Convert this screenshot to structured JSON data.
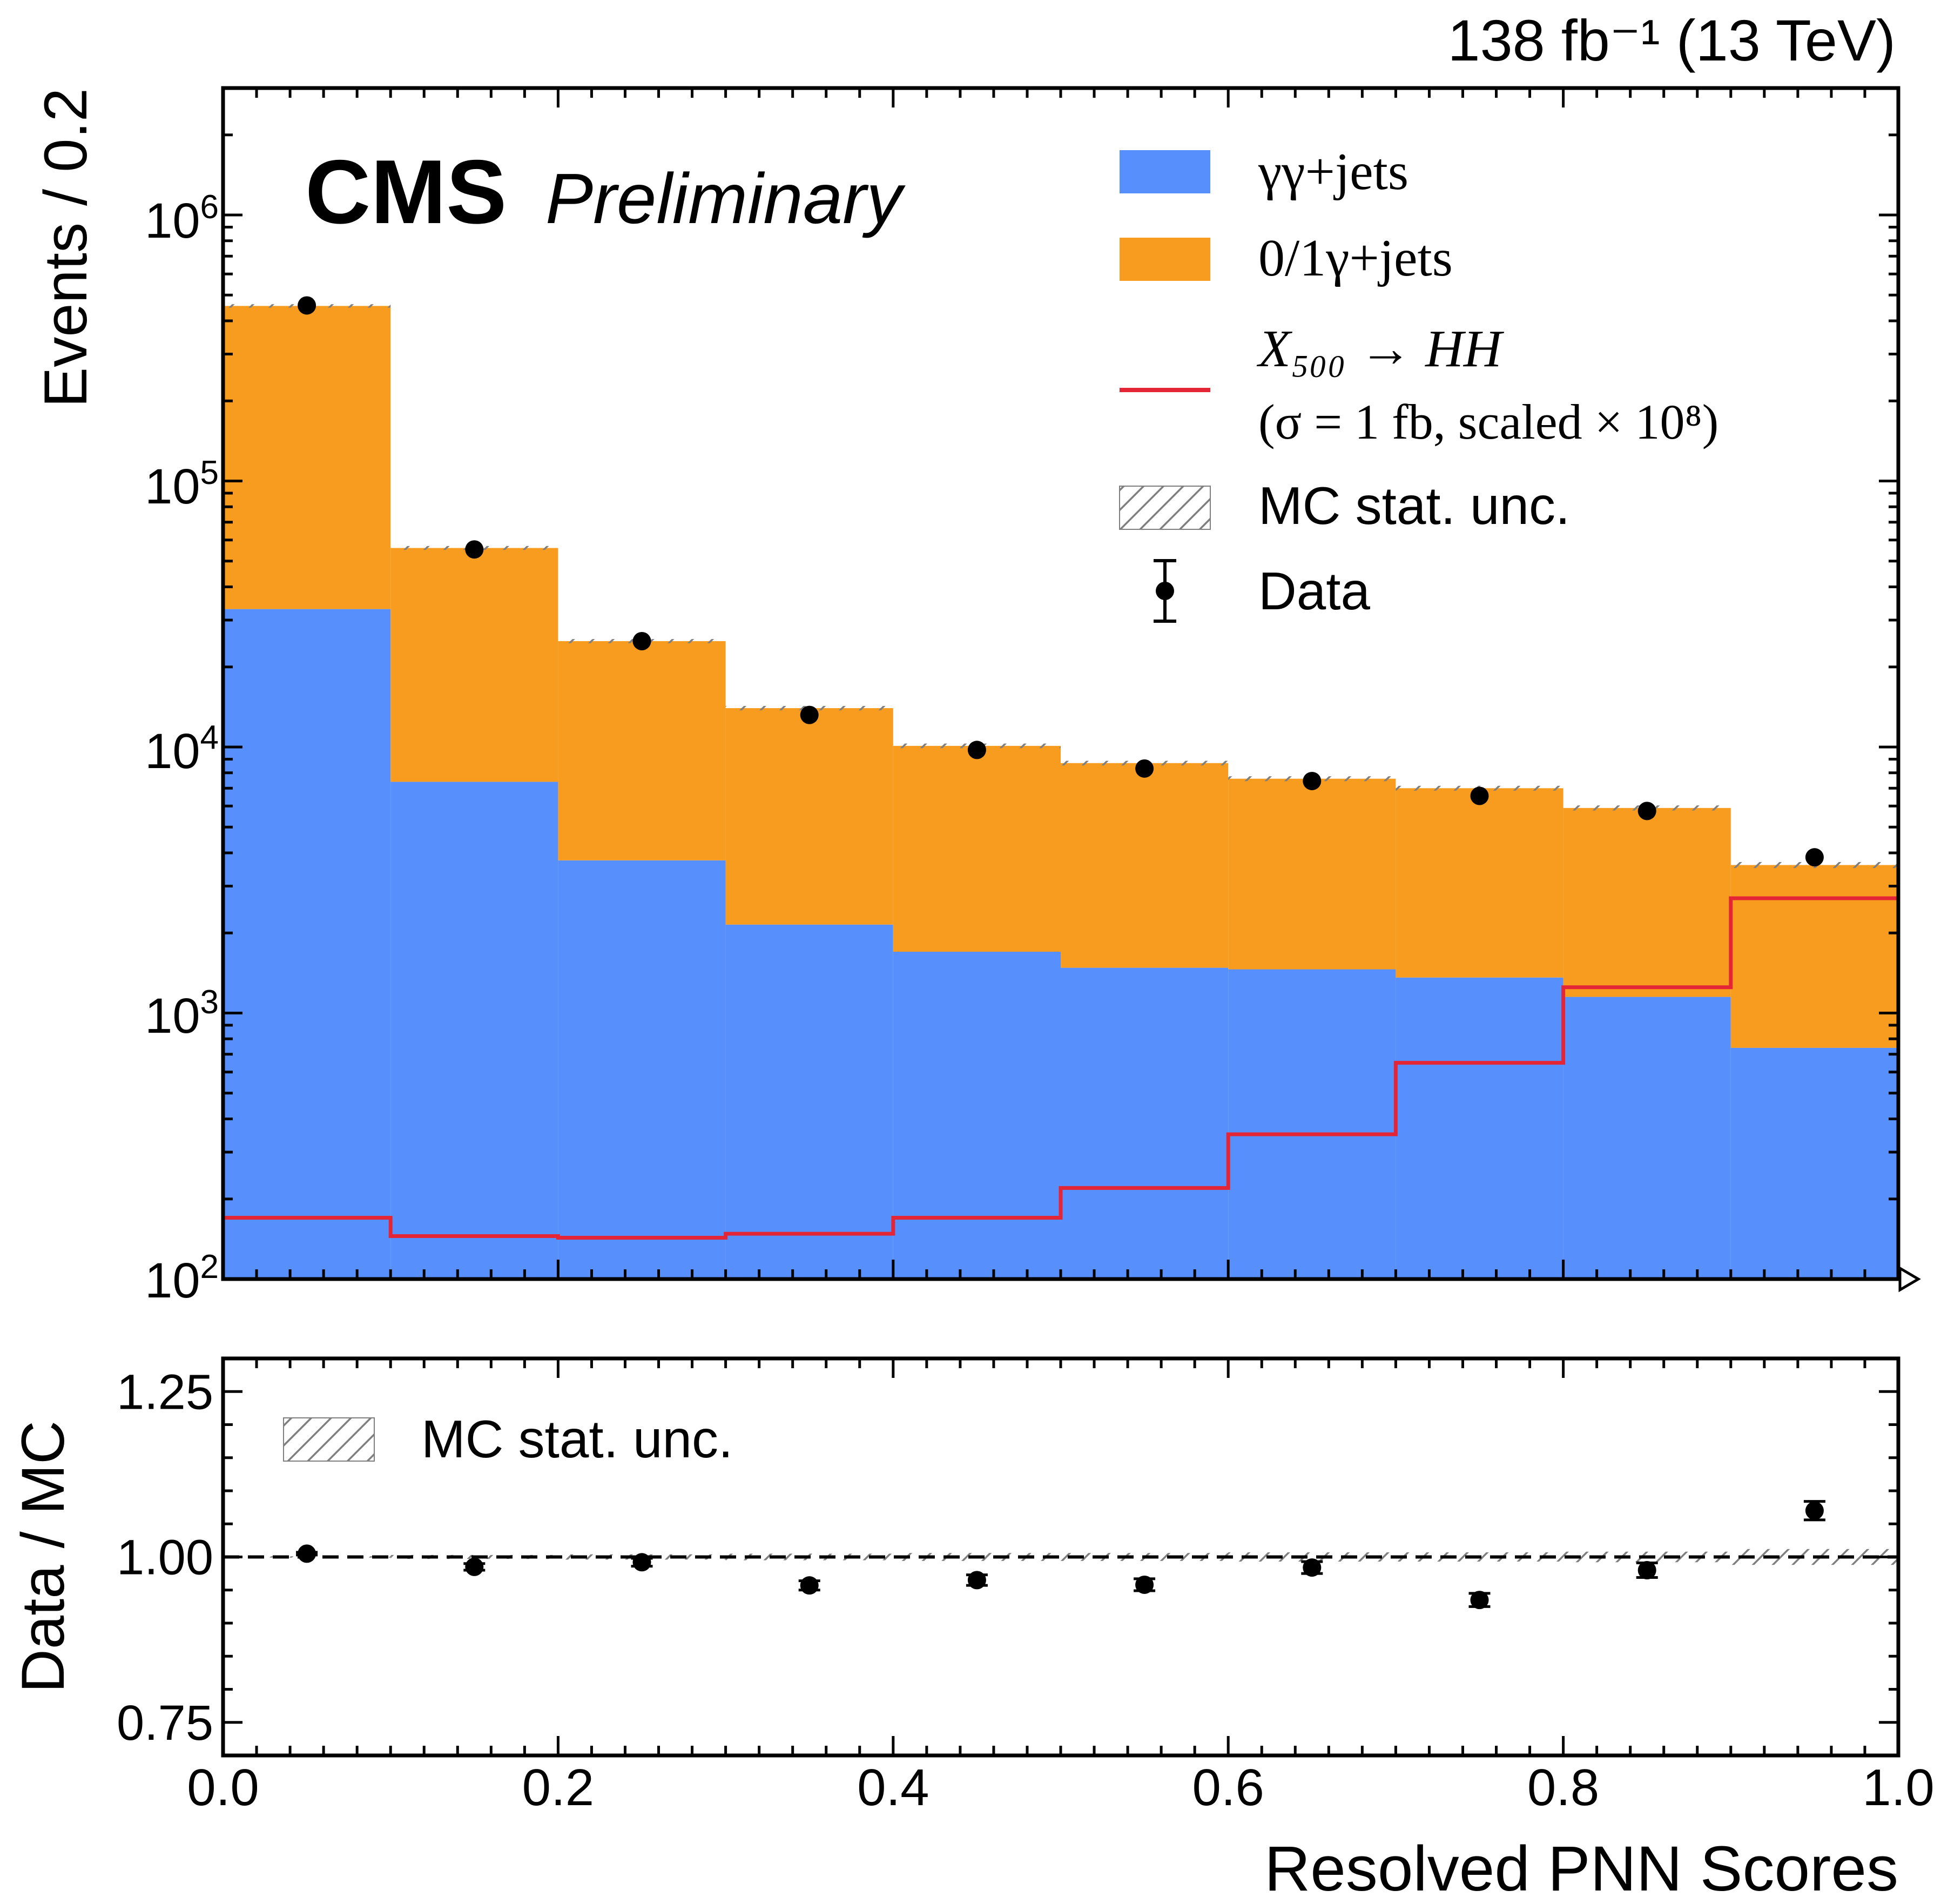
{
  "lumi_label": "138 fb⁻¹ (13 TeV)",
  "cms_label": "CMS",
  "preliminary_label": "Preliminary",
  "colors": {
    "gg_jets": "#5790fc",
    "g_jets": "#f89c20",
    "signal": "#e42536",
    "data": "#000000",
    "unc": "#7f7f7f"
  },
  "chart_data": [
    {
      "type": "bar",
      "panel": "main",
      "stacked": true,
      "log_y": true,
      "ylabel": "Events / 0.2",
      "ylim": [
        100,
        3000000
      ],
      "xlim": [
        0,
        1
      ],
      "bin_edges": [
        0.0,
        0.1,
        0.2,
        0.3,
        0.4,
        0.5,
        0.6,
        0.7,
        0.8,
        0.9,
        1.0
      ],
      "y_ticks": [
        {
          "value": 100,
          "base": "10",
          "exp": "2"
        },
        {
          "value": 1000,
          "base": "10",
          "exp": "3"
        },
        {
          "value": 10000,
          "base": "10",
          "exp": "4"
        },
        {
          "value": 100000,
          "base": "10",
          "exp": "5"
        },
        {
          "value": 1000000,
          "base": "10",
          "exp": "6"
        }
      ],
      "series": [
        {
          "name": "γγ+jets",
          "kind": "stack",
          "values": [
            33000,
            7400,
            3750,
            2150,
            1700,
            1480,
            1460,
            1360,
            1150,
            740
          ]
        },
        {
          "name": "0/1γ+jets",
          "kind": "stack",
          "values": [
            422000,
            48600,
            21250,
            11850,
            8400,
            7220,
            6140,
            5640,
            4750,
            2860
          ]
        },
        {
          "name": "X₅₀₀ → HH",
          "note": "(σ = 1 fb, scaled × 10⁸)",
          "kind": "step",
          "values": [
            170,
            145,
            143,
            148,
            170,
            220,
            350,
            650,
            1250,
            2700
          ]
        },
        {
          "name": "Data",
          "kind": "points",
          "x": [
            0.05,
            0.15,
            0.25,
            0.35,
            0.45,
            0.55,
            0.65,
            0.75,
            0.85,
            0.95
          ],
          "values": [
            457000,
            55300,
            25000,
            13200,
            9750,
            8300,
            7450,
            6550,
            5750,
            3850
          ]
        }
      ],
      "legend": [
        {
          "label": "γγ+jets",
          "type": "fill"
        },
        {
          "label": "0/1γ+jets",
          "type": "fill"
        },
        {
          "label": "X₅₀₀ → HH",
          "label2": "(σ = 1 fb, scaled × 10⁸)",
          "type": "line"
        },
        {
          "label": "MC stat. unc.",
          "type": "hatch"
        },
        {
          "label": "Data",
          "type": "point"
        }
      ],
      "legend_position": "top-right"
    },
    {
      "type": "scatter",
      "panel": "ratio",
      "ylabel": "Data / MC",
      "xlabel": "Resolved PNN Scores",
      "ylim": [
        0.7,
        1.3
      ],
      "xlim": [
        0,
        1
      ],
      "reference_line": 1.0,
      "x_ticks": [
        "0.0",
        "0.2",
        "0.4",
        "0.6",
        "0.8",
        "1.0"
      ],
      "y_ticks": [
        "0.75",
        "1.00",
        "1.25"
      ],
      "x": [
        0.05,
        0.15,
        0.25,
        0.35,
        0.45,
        0.55,
        0.65,
        0.75,
        0.85,
        0.95
      ],
      "values": [
        1.005,
        0.985,
        0.992,
        0.957,
        0.965,
        0.958,
        0.984,
        0.935,
        0.98,
        1.07
      ],
      "errors": [
        0.002,
        0.005,
        0.006,
        0.007,
        0.008,
        0.009,
        0.009,
        0.01,
        0.011,
        0.014
      ],
      "unc_band": [
        0.001,
        0.003,
        0.004,
        0.005,
        0.006,
        0.006,
        0.007,
        0.007,
        0.008,
        0.012
      ],
      "legend": [
        {
          "label": "MC stat. unc.",
          "type": "hatch"
        }
      ],
      "legend_position": "top-left"
    }
  ]
}
